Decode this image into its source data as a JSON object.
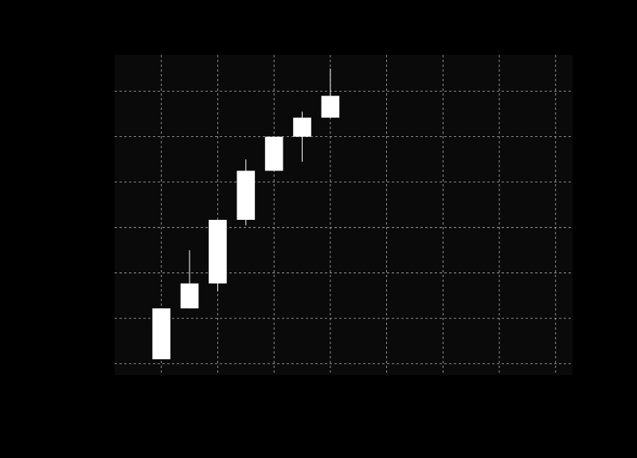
{
  "chart_data": {
    "type": "candlestick",
    "title": "",
    "xlabel": "",
    "ylabel": "",
    "grid": true,
    "xlim": [
      0.17,
      8.3
    ],
    "ylim": [
      -0.25,
      6.8
    ],
    "x_gridlines": [
      1,
      2,
      3,
      4,
      5,
      6,
      7,
      8
    ],
    "y_gridlines": [
      0,
      1,
      2,
      3,
      4,
      5,
      6
    ],
    "candles": [
      {
        "x": 1.0,
        "open": 0.1,
        "close": 1.22,
        "high": 1.22,
        "low": 0.1
      },
      {
        "x": 1.5,
        "open": 1.22,
        "close": 1.77,
        "high": 2.5,
        "low": 1.22
      },
      {
        "x": 2.0,
        "open": 1.77,
        "close": 3.17,
        "high": 3.17,
        "low": 1.6
      },
      {
        "x": 2.5,
        "open": 3.17,
        "close": 4.25,
        "high": 4.5,
        "low": 3.05
      },
      {
        "x": 3.0,
        "open": 4.25,
        "close": 5.0,
        "high": 5.0,
        "low": 4.25
      },
      {
        "x": 3.5,
        "open": 5.0,
        "close": 5.42,
        "high": 5.55,
        "low": 4.45
      },
      {
        "x": 4.0,
        "open": 5.42,
        "close": 5.9,
        "high": 6.5,
        "low": 5.42
      }
    ],
    "candle_width": 0.32,
    "colors": {
      "page_background": "#000000",
      "plot_background": "#0a0a0a",
      "candle": "#ffffff",
      "grid": "#b0b0b0"
    }
  }
}
